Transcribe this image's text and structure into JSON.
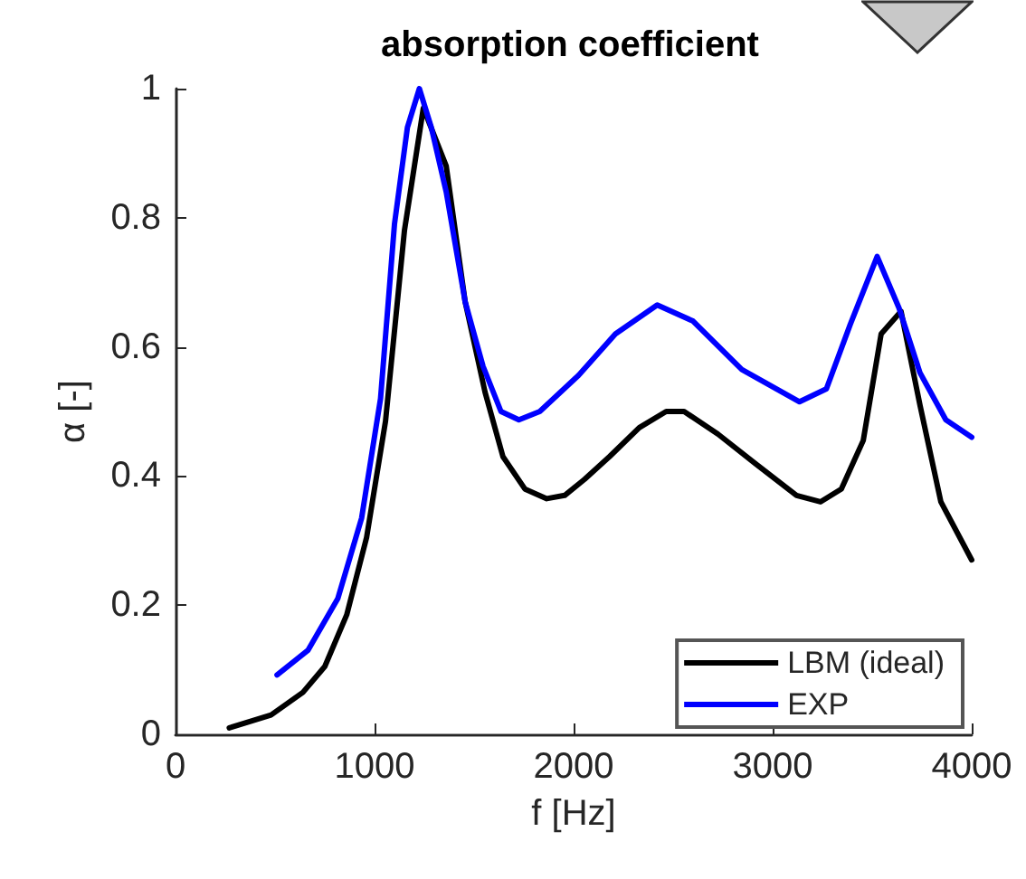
{
  "chart_data": {
    "type": "line",
    "title": "absorption coefficient",
    "xlabel": "f [Hz]",
    "ylabel": "α [-]",
    "xlim": [
      0,
      4000
    ],
    "xticks": [
      0,
      1000,
      2000,
      3000,
      4000
    ],
    "ylim": [
      0,
      1
    ],
    "yticks": [
      0,
      0.2,
      0.4,
      0.6,
      0.8,
      1
    ],
    "grid": false,
    "legend": "bottom right",
    "marker": "none",
    "line_style": "solid",
    "series": [
      {
        "name": "LBM (ideal)",
        "color": "#000000",
        "x": [
          270,
          480,
          640,
          750,
          860,
          960,
          1055,
          1150,
          1245,
          1360,
          1455,
          1555,
          1645,
          1755,
          1865,
          1955,
          2055,
          2180,
          2330,
          2465,
          2555,
          2725,
          2910,
          3120,
          3240,
          3345,
          3455,
          3545,
          3645,
          3740,
          3845,
          4000
        ],
        "values": [
          0.01,
          0.03,
          0.065,
          0.105,
          0.185,
          0.305,
          0.485,
          0.78,
          0.97,
          0.88,
          0.67,
          0.53,
          0.43,
          0.38,
          0.365,
          0.37,
          0.395,
          0.43,
          0.475,
          0.5,
          0.5,
          0.465,
          0.42,
          0.37,
          0.36,
          0.38,
          0.455,
          0.62,
          0.655,
          0.51,
          0.36,
          0.27
        ]
      },
      {
        "name": "EXP",
        "color": "#0000ff",
        "x": [
          510,
          665,
          815,
          935,
          1030,
          1100,
          1165,
          1225,
          1285,
          1360,
          1455,
          1545,
          1635,
          1725,
          1830,
          2025,
          2210,
          2420,
          2600,
          2845,
          3135,
          3270,
          3390,
          3525,
          3635,
          3740,
          3870,
          4000
        ],
        "values": [
          0.092,
          0.13,
          0.21,
          0.335,
          0.52,
          0.79,
          0.94,
          1.0,
          0.94,
          0.84,
          0.67,
          0.57,
          0.5,
          0.487,
          0.5,
          0.556,
          0.62,
          0.665,
          0.64,
          0.565,
          0.515,
          0.535,
          0.635,
          0.74,
          0.66,
          0.56,
          0.487,
          0.46
        ]
      }
    ]
  }
}
